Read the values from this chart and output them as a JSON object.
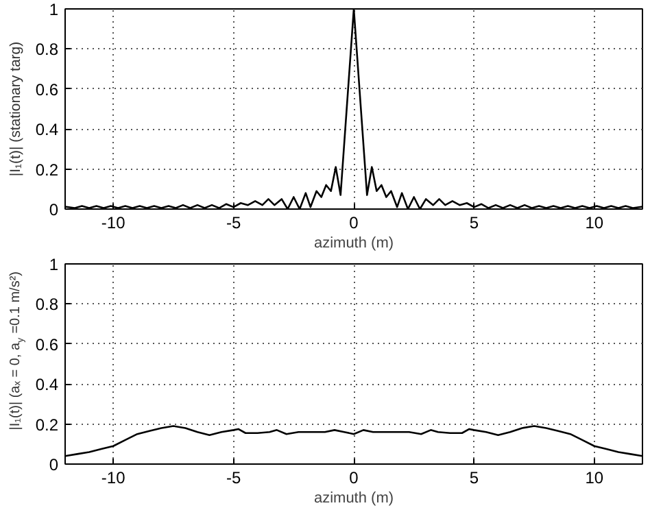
{
  "chart_data": [
    {
      "type": "line",
      "xlabel": "azimuth (m)",
      "ylabel": "|I₁(t)| (stationary targ)",
      "xlim": [
        -12,
        12
      ],
      "ylim": [
        0,
        1
      ],
      "xticks": [
        -10,
        -5,
        0,
        5,
        10
      ],
      "yticks": [
        0,
        0.2,
        0.4,
        0.6,
        0.8,
        1
      ],
      "grid": true,
      "x": [
        -12,
        -11.6,
        -11.3,
        -11,
        -10.7,
        -10.4,
        -10.1,
        -9.8,
        -9.5,
        -9.2,
        -8.9,
        -8.6,
        -8.3,
        -8,
        -7.7,
        -7.4,
        -7.1,
        -6.8,
        -6.5,
        -6.2,
        -5.9,
        -5.6,
        -5.3,
        -5,
        -4.7,
        -4.4,
        -4.1,
        -3.8,
        -3.55,
        -3.3,
        -3,
        -2.75,
        -2.5,
        -2.25,
        -2,
        -1.8,
        -1.55,
        -1.35,
        -1.15,
        -0.95,
        -0.75,
        -0.55,
        0,
        0.55,
        0.75,
        0.95,
        1.15,
        1.35,
        1.55,
        1.8,
        2,
        2.25,
        2.5,
        2.75,
        3,
        3.3,
        3.55,
        3.8,
        4.1,
        4.4,
        4.7,
        5,
        5.3,
        5.6,
        5.9,
        6.2,
        6.5,
        6.8,
        7.1,
        7.4,
        7.7,
        8,
        8.3,
        8.6,
        8.9,
        9.2,
        9.5,
        9.8,
        10.1,
        10.4,
        10.7,
        11,
        11.3,
        11.6,
        12
      ],
      "series": [
        {
          "color": "#000000",
          "values": [
            0.012,
            0.005,
            0.015,
            0.005,
            0.015,
            0.005,
            0.015,
            0.005,
            0.015,
            0.005,
            0.015,
            0.005,
            0.015,
            0.005,
            0.015,
            0.005,
            0.02,
            0.005,
            0.02,
            0.005,
            0.02,
            0.005,
            0.025,
            0.01,
            0.03,
            0.02,
            0.04,
            0.02,
            0.05,
            0.02,
            0.05,
            0,
            0.06,
            0,
            0.08,
            0.01,
            0.09,
            0.06,
            0.12,
            0.09,
            0.21,
            0.07,
            1,
            0.07,
            0.21,
            0.09,
            0.12,
            0.06,
            0.09,
            0.01,
            0.08,
            0,
            0.06,
            0,
            0.05,
            0.02,
            0.05,
            0.02,
            0.04,
            0.02,
            0.03,
            0.01,
            0.025,
            0.005,
            0.02,
            0.005,
            0.02,
            0.005,
            0.02,
            0.005,
            0.015,
            0.005,
            0.015,
            0.005,
            0.015,
            0.005,
            0.015,
            0.005,
            0.015,
            0.005,
            0.015,
            0.005,
            0.015,
            0.005,
            0.012
          ]
        }
      ]
    },
    {
      "type": "line",
      "xlabel": "azimuth (m)",
      "ylabel": "|I₁(t)| (aₓ = 0, a$_{y}$ =0.1 m/s²)",
      "xlim": [
        -12,
        12
      ],
      "ylim": [
        0,
        1
      ],
      "xticks": [
        -10,
        -5,
        0,
        5,
        10
      ],
      "yticks": [
        0,
        0.2,
        0.4,
        0.6,
        0.8,
        1
      ],
      "grid": true,
      "x": [
        -12,
        -11.5,
        -11,
        -10.5,
        -10,
        -9.5,
        -9,
        -8.5,
        -8,
        -7.5,
        -7,
        -6.5,
        -6,
        -5.5,
        -5,
        -4.8,
        -4.5,
        -4,
        -3.5,
        -3.2,
        -2.8,
        -2.3,
        -1.8,
        -1.2,
        -0.8,
        -0.4,
        0,
        0.4,
        0.8,
        1.2,
        1.8,
        2.3,
        2.8,
        3.2,
        3.5,
        4,
        4.5,
        4.8,
        5,
        5.5,
        6,
        6.5,
        7,
        7.5,
        8,
        8.5,
        9,
        9.5,
        10,
        10.5,
        11,
        11.5,
        12
      ],
      "series": [
        {
          "color": "#000000",
          "values": [
            0.04,
            0.05,
            0.06,
            0.075,
            0.09,
            0.12,
            0.15,
            0.165,
            0.18,
            0.19,
            0.18,
            0.16,
            0.145,
            0.16,
            0.17,
            0.175,
            0.155,
            0.155,
            0.16,
            0.17,
            0.15,
            0.16,
            0.16,
            0.16,
            0.17,
            0.16,
            0.15,
            0.17,
            0.16,
            0.16,
            0.16,
            0.16,
            0.15,
            0.17,
            0.16,
            0.155,
            0.155,
            0.175,
            0.17,
            0.16,
            0.145,
            0.16,
            0.18,
            0.19,
            0.18,
            0.165,
            0.15,
            0.12,
            0.09,
            0.075,
            0.06,
            0.05,
            0.04
          ]
        }
      ]
    }
  ]
}
